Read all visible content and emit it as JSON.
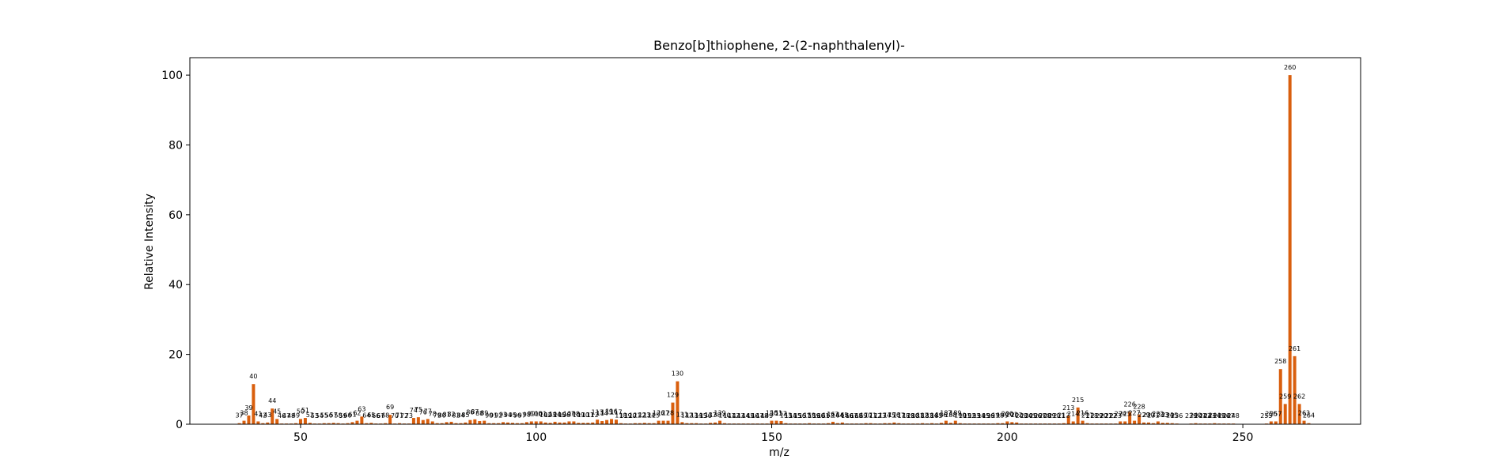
{
  "chart_data": {
    "type": "bar",
    "title": "Benzo[b]thiophene, 2-(2-naphthalenyl)-",
    "xlabel": "m/z",
    "ylabel": "Relative Intensity",
    "xlim": [
      26.5,
      275
    ],
    "ylim": [
      0,
      105
    ],
    "xticks": [
      50,
      100,
      150,
      200,
      250
    ],
    "yticks": [
      0,
      20,
      40,
      60,
      80,
      100
    ],
    "bar_color": "#d95f0e",
    "grid": false,
    "legend": "none",
    "peaks": [
      {
        "x": 37,
        "y": 0.3
      },
      {
        "x": 38,
        "y": 1.0
      },
      {
        "x": 39,
        "y": 2.5
      },
      {
        "x": 40,
        "y": 11.5
      },
      {
        "x": 41,
        "y": 0.8
      },
      {
        "x": 42,
        "y": 0.3
      },
      {
        "x": 43,
        "y": 0.5
      },
      {
        "x": 44,
        "y": 4.5
      },
      {
        "x": 45,
        "y": 1.5
      },
      {
        "x": 46,
        "y": 0.2
      },
      {
        "x": 47,
        "y": 0.2
      },
      {
        "x": 48,
        "y": 0.2
      },
      {
        "x": 49,
        "y": 0.3
      },
      {
        "x": 50,
        "y": 1.5
      },
      {
        "x": 51,
        "y": 1.8
      },
      {
        "x": 52,
        "y": 0.4
      },
      {
        "x": 53,
        "y": 0.2
      },
      {
        "x": 54,
        "y": 0.2
      },
      {
        "x": 55,
        "y": 0.3
      },
      {
        "x": 56,
        "y": 0.3
      },
      {
        "x": 57,
        "y": 0.4
      },
      {
        "x": 58,
        "y": 0.3
      },
      {
        "x": 59,
        "y": 0.2
      },
      {
        "x": 60,
        "y": 0.3
      },
      {
        "x": 61,
        "y": 0.6
      },
      {
        "x": 62,
        "y": 1.0
      },
      {
        "x": 63,
        "y": 2.2
      },
      {
        "x": 64,
        "y": 0.3
      },
      {
        "x": 65,
        "y": 0.4
      },
      {
        "x": 66,
        "y": 0.2
      },
      {
        "x": 67,
        "y": 0.2
      },
      {
        "x": 68,
        "y": 0.3
      },
      {
        "x": 69,
        "y": 2.7
      },
      {
        "x": 70,
        "y": 0.2
      },
      {
        "x": 71,
        "y": 0.3
      },
      {
        "x": 72,
        "y": 0.2
      },
      {
        "x": 73,
        "y": 0.2
      },
      {
        "x": 74,
        "y": 1.8
      },
      {
        "x": 75,
        "y": 2.0
      },
      {
        "x": 76,
        "y": 1.2
      },
      {
        "x": 77,
        "y": 1.5
      },
      {
        "x": 78,
        "y": 0.8
      },
      {
        "x": 79,
        "y": 0.3
      },
      {
        "x": 80,
        "y": 0.3
      },
      {
        "x": 81,
        "y": 0.6
      },
      {
        "x": 82,
        "y": 0.7
      },
      {
        "x": 83,
        "y": 0.3
      },
      {
        "x": 84,
        "y": 0.3
      },
      {
        "x": 85,
        "y": 0.5
      },
      {
        "x": 86,
        "y": 1.2
      },
      {
        "x": 87,
        "y": 1.4
      },
      {
        "x": 88,
        "y": 0.9
      },
      {
        "x": 89,
        "y": 1.0
      },
      {
        "x": 90,
        "y": 0.3
      },
      {
        "x": 91,
        "y": 0.3
      },
      {
        "x": 92,
        "y": 0.3
      },
      {
        "x": 93,
        "y": 0.6
      },
      {
        "x": 94,
        "y": 0.5
      },
      {
        "x": 95,
        "y": 0.4
      },
      {
        "x": 96,
        "y": 0.3
      },
      {
        "x": 97,
        "y": 0.3
      },
      {
        "x": 98,
        "y": 0.6
      },
      {
        "x": 99,
        "y": 0.8
      },
      {
        "x": 100,
        "y": 0.8
      },
      {
        "x": 101,
        "y": 0.8
      },
      {
        "x": 102,
        "y": 0.5
      },
      {
        "x": 103,
        "y": 0.4
      },
      {
        "x": 104,
        "y": 0.7
      },
      {
        "x": 105,
        "y": 0.5
      },
      {
        "x": 106,
        "y": 0.5
      },
      {
        "x": 107,
        "y": 0.8
      },
      {
        "x": 108,
        "y": 0.8
      },
      {
        "x": 109,
        "y": 0.4
      },
      {
        "x": 110,
        "y": 0.4
      },
      {
        "x": 111,
        "y": 0.4
      },
      {
        "x": 112,
        "y": 0.5
      },
      {
        "x": 113,
        "y": 1.3
      },
      {
        "x": 114,
        "y": 0.9
      },
      {
        "x": 115,
        "y": 1.2
      },
      {
        "x": 116,
        "y": 1.5
      },
      {
        "x": 117,
        "y": 1.3
      },
      {
        "x": 118,
        "y": 0.3
      },
      {
        "x": 119,
        "y": 0.2
      },
      {
        "x": 120,
        "y": 0.2
      },
      {
        "x": 121,
        "y": 0.3
      },
      {
        "x": 122,
        "y": 0.3
      },
      {
        "x": 123,
        "y": 0.4
      },
      {
        "x": 124,
        "y": 0.3
      },
      {
        "x": 125,
        "y": 0.3
      },
      {
        "x": 126,
        "y": 1.0
      },
      {
        "x": 127,
        "y": 1.0
      },
      {
        "x": 128,
        "y": 1.0
      },
      {
        "x": 129,
        "y": 6.2
      },
      {
        "x": 130,
        "y": 12.3
      },
      {
        "x": 131,
        "y": 0.6
      },
      {
        "x": 132,
        "y": 0.3
      },
      {
        "x": 133,
        "y": 0.3
      },
      {
        "x": 134,
        "y": 0.3
      },
      {
        "x": 135,
        "y": 0.2
      },
      {
        "x": 136,
        "y": 0.2
      },
      {
        "x": 137,
        "y": 0.4
      },
      {
        "x": 138,
        "y": 0.5
      },
      {
        "x": 139,
        "y": 1.0
      },
      {
        "x": 140,
        "y": 0.3
      },
      {
        "x": 141,
        "y": 0.2
      },
      {
        "x": 142,
        "y": 0.2
      },
      {
        "x": 143,
        "y": 0.2
      },
      {
        "x": 144,
        "y": 0.2
      },
      {
        "x": 145,
        "y": 0.2
      },
      {
        "x": 146,
        "y": 0.2
      },
      {
        "x": 147,
        "y": 0.2
      },
      {
        "x": 148,
        "y": 0.2
      },
      {
        "x": 149,
        "y": 0.2
      },
      {
        "x": 150,
        "y": 1.0
      },
      {
        "x": 151,
        "y": 1.0
      },
      {
        "x": 152,
        "y": 0.9
      },
      {
        "x": 153,
        "y": 0.3
      },
      {
        "x": 154,
        "y": 0.2
      },
      {
        "x": 155,
        "y": 0.2
      },
      {
        "x": 156,
        "y": 0.2
      },
      {
        "x": 157,
        "y": 0.2
      },
      {
        "x": 158,
        "y": 0.3
      },
      {
        "x": 159,
        "y": 0.2
      },
      {
        "x": 160,
        "y": 0.2
      },
      {
        "x": 161,
        "y": 0.2
      },
      {
        "x": 162,
        "y": 0.3
      },
      {
        "x": 163,
        "y": 0.7
      },
      {
        "x": 164,
        "y": 0.3
      },
      {
        "x": 165,
        "y": 0.5
      },
      {
        "x": 166,
        "y": 0.2
      },
      {
        "x": 167,
        "y": 0.2
      },
      {
        "x": 168,
        "y": 0.2
      },
      {
        "x": 169,
        "y": 0.2
      },
      {
        "x": 170,
        "y": 0.3
      },
      {
        "x": 171,
        "y": 0.3
      },
      {
        "x": 172,
        "y": 0.2
      },
      {
        "x": 173,
        "y": 0.2
      },
      {
        "x": 174,
        "y": 0.3
      },
      {
        "x": 175,
        "y": 0.3
      },
      {
        "x": 176,
        "y": 0.5
      },
      {
        "x": 177,
        "y": 0.3
      },
      {
        "x": 178,
        "y": 0.2
      },
      {
        "x": 179,
        "y": 0.2
      },
      {
        "x": 180,
        "y": 0.2
      },
      {
        "x": 181,
        "y": 0.2
      },
      {
        "x": 182,
        "y": 0.3
      },
      {
        "x": 183,
        "y": 0.2
      },
      {
        "x": 184,
        "y": 0.3
      },
      {
        "x": 185,
        "y": 0.2
      },
      {
        "x": 186,
        "y": 0.4
      },
      {
        "x": 187,
        "y": 1.0
      },
      {
        "x": 188,
        "y": 0.4
      },
      {
        "x": 189,
        "y": 1.0
      },
      {
        "x": 190,
        "y": 0.3
      },
      {
        "x": 191,
        "y": 0.2
      },
      {
        "x": 192,
        "y": 0.2
      },
      {
        "x": 193,
        "y": 0.2
      },
      {
        "x": 194,
        "y": 0.2
      },
      {
        "x": 195,
        "y": 0.2
      },
      {
        "x": 196,
        "y": 0.2
      },
      {
        "x": 197,
        "y": 0.2
      },
      {
        "x": 198,
        "y": 0.3
      },
      {
        "x": 199,
        "y": 0.3
      },
      {
        "x": 200,
        "y": 0.8
      },
      {
        "x": 201,
        "y": 0.6
      },
      {
        "x": 202,
        "y": 0.5
      },
      {
        "x": 203,
        "y": 0.2
      },
      {
        "x": 204,
        "y": 0.2
      },
      {
        "x": 205,
        "y": 0.2
      },
      {
        "x": 206,
        "y": 0.2
      },
      {
        "x": 207,
        "y": 0.2
      },
      {
        "x": 208,
        "y": 0.2
      },
      {
        "x": 209,
        "y": 0.2
      },
      {
        "x": 210,
        "y": 0.2
      },
      {
        "x": 211,
        "y": 0.2
      },
      {
        "x": 212,
        "y": 0.3
      },
      {
        "x": 213,
        "y": 2.5
      },
      {
        "x": 214,
        "y": 0.8
      },
      {
        "x": 215,
        "y": 4.8
      },
      {
        "x": 216,
        "y": 1.0
      },
      {
        "x": 217,
        "y": 0.3
      },
      {
        "x": 218,
        "y": 0.2
      },
      {
        "x": 219,
        "y": 0.2
      },
      {
        "x": 220,
        "y": 0.2
      },
      {
        "x": 221,
        "y": 0.2
      },
      {
        "x": 222,
        "y": 0.2
      },
      {
        "x": 223,
        "y": 0.2
      },
      {
        "x": 224,
        "y": 0.8
      },
      {
        "x": 225,
        "y": 0.8
      },
      {
        "x": 226,
        "y": 3.5
      },
      {
        "x": 227,
        "y": 1.0
      },
      {
        "x": 228,
        "y": 2.8
      },
      {
        "x": 229,
        "y": 0.5
      },
      {
        "x": 230,
        "y": 0.5
      },
      {
        "x": 231,
        "y": 0.3
      },
      {
        "x": 232,
        "y": 0.8
      },
      {
        "x": 233,
        "y": 0.4
      },
      {
        "x": 234,
        "y": 0.4
      },
      {
        "x": 235,
        "y": 0.3
      },
      {
        "x": 236,
        "y": 0.2
      },
      {
        "x": 239,
        "y": 0.2
      },
      {
        "x": 240,
        "y": 0.3
      },
      {
        "x": 241,
        "y": 0.2
      },
      {
        "x": 242,
        "y": 0.2
      },
      {
        "x": 243,
        "y": 0.2
      },
      {
        "x": 244,
        "y": 0.3
      },
      {
        "x": 245,
        "y": 0.2
      },
      {
        "x": 246,
        "y": 0.2
      },
      {
        "x": 247,
        "y": 0.2
      },
      {
        "x": 248,
        "y": 0.2
      },
      {
        "x": 255,
        "y": 0.2
      },
      {
        "x": 256,
        "y": 0.8
      },
      {
        "x": 257,
        "y": 0.8
      },
      {
        "x": 258,
        "y": 15.8
      },
      {
        "x": 259,
        "y": 5.8
      },
      {
        "x": 260,
        "y": 100.0
      },
      {
        "x": 261,
        "y": 19.5
      },
      {
        "x": 262,
        "y": 5.8
      },
      {
        "x": 263,
        "y": 1.0
      },
      {
        "x": 264,
        "y": 0.3
      }
    ]
  }
}
